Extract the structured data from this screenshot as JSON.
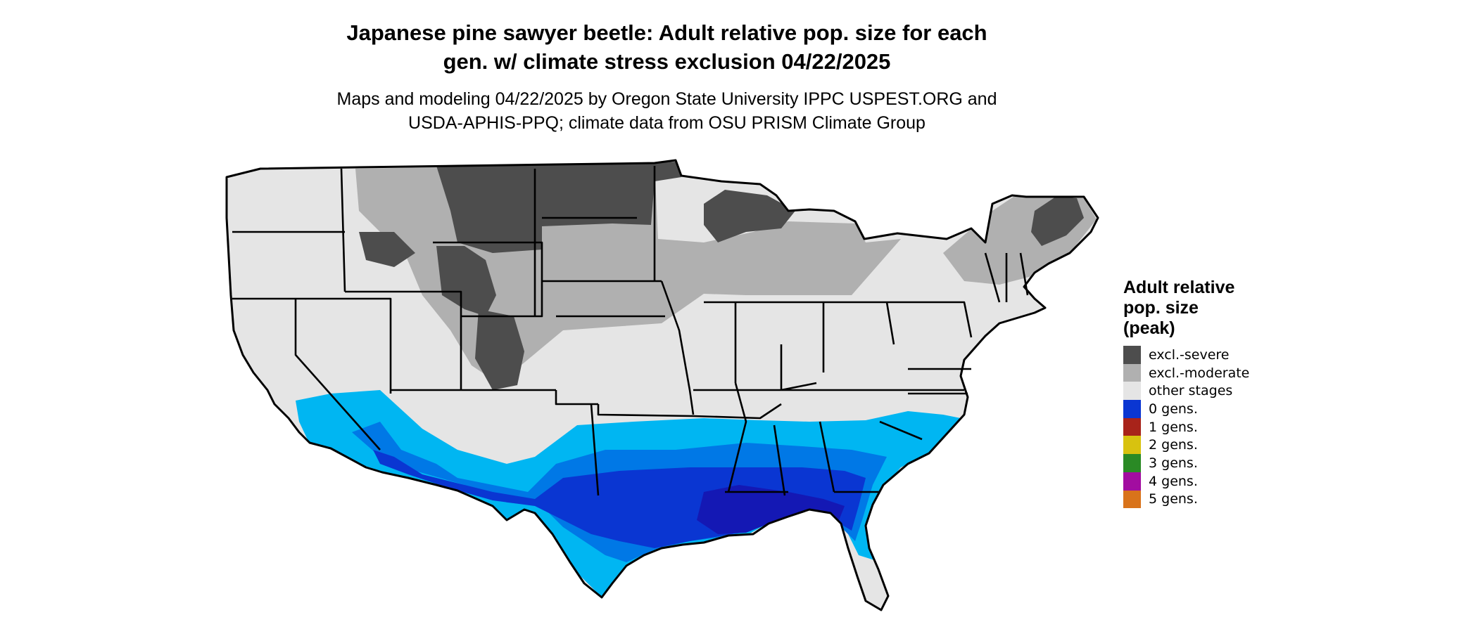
{
  "title_line1": "Japanese pine sawyer beetle: Adult relative pop. size for each",
  "title_line2": "gen. w/ climate stress exclusion 04/22/2025",
  "subtitle_line1": "Maps and modeling 04/22/2025 by Oregon State University IPPC USPEST.ORG and",
  "subtitle_line2": "USDA-APHIS-PPQ; climate data from OSU PRISM Climate Group",
  "legend": {
    "title_line1": "Adult relative",
    "title_line2": "pop. size",
    "title_line3": "(peak)",
    "items": [
      {
        "label": "excl.-severe",
        "color": "#4d4d4d"
      },
      {
        "label": "excl.-moderate",
        "color": "#b0b0b0"
      },
      {
        "label": "other stages",
        "color": "#e5e5e5"
      },
      {
        "label": "0 gens.",
        "color": "#0a36d2"
      },
      {
        "label": "1 gens.",
        "color": "#a8231a"
      },
      {
        "label": "2 gens.",
        "color": "#d8c20f"
      },
      {
        "label": "3 gens.",
        "color": "#2a8a25"
      },
      {
        "label": "4 gens.",
        "color": "#a20da0"
      },
      {
        "label": "5 gens.",
        "color": "#d9731a"
      }
    ]
  },
  "map_colors": {
    "severe": "#4d4d4d",
    "moderate": "#b0b0b0",
    "other": "#e5e5e5",
    "light_blue": "#00b6f2",
    "mid_blue": "#0078e6",
    "dark_blue": "#0a36d2",
    "deep_blue": "#1418b4",
    "border": "#000000"
  }
}
